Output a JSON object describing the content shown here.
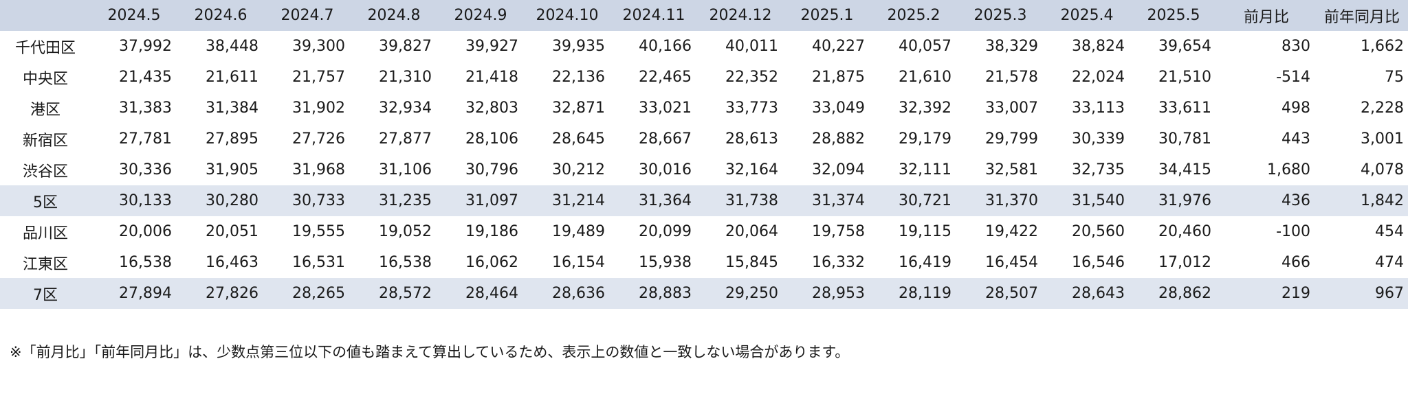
{
  "table": {
    "headers": [
      "",
      "2024.5",
      "2024.6",
      "2024.7",
      "2024.8",
      "2024.9",
      "2024.10",
      "2024.11",
      "2024.12",
      "2025.1",
      "2025.2",
      "2025.3",
      "2025.4",
      "2025.5",
      "前月比",
      "前年同月比"
    ],
    "rows": [
      {
        "label": "千代田区",
        "cells": [
          "37,992",
          "38,448",
          "39,300",
          "39,827",
          "39,927",
          "39,935",
          "40,166",
          "40,011",
          "40,227",
          "40,057",
          "38,329",
          "38,824",
          "39,654",
          "830",
          "1,662"
        ]
      },
      {
        "label": "中央区",
        "cells": [
          "21,435",
          "21,611",
          "21,757",
          "21,310",
          "21,418",
          "22,136",
          "22,465",
          "22,352",
          "21,875",
          "21,610",
          "21,578",
          "22,024",
          "21,510",
          "-514",
          "75"
        ]
      },
      {
        "label": "港区",
        "cells": [
          "31,383",
          "31,384",
          "31,902",
          "32,934",
          "32,803",
          "32,871",
          "33,021",
          "33,773",
          "33,049",
          "32,392",
          "33,007",
          "33,113",
          "33,611",
          "498",
          "2,228"
        ]
      },
      {
        "label": "新宿区",
        "cells": [
          "27,781",
          "27,895",
          "27,726",
          "27,877",
          "28,106",
          "28,645",
          "28,667",
          "28,613",
          "28,882",
          "29,179",
          "29,799",
          "30,339",
          "30,781",
          "443",
          "3,001"
        ]
      },
      {
        "label": "渋谷区",
        "cells": [
          "30,336",
          "31,905",
          "31,968",
          "31,106",
          "30,796",
          "30,212",
          "30,016",
          "32,164",
          "32,094",
          "32,111",
          "32,581",
          "32,735",
          "34,415",
          "1,680",
          "4,078"
        ]
      },
      {
        "label": "5区",
        "cells": [
          "30,133",
          "30,280",
          "30,733",
          "31,235",
          "31,097",
          "31,214",
          "31,364",
          "31,738",
          "31,374",
          "30,721",
          "31,370",
          "31,540",
          "31,976",
          "436",
          "1,842"
        ]
      },
      {
        "label": "品川区",
        "cells": [
          "20,006",
          "20,051",
          "19,555",
          "19,052",
          "19,186",
          "19,489",
          "20,099",
          "20,064",
          "19,758",
          "19,115",
          "19,422",
          "20,560",
          "20,460",
          "-100",
          "454"
        ]
      },
      {
        "label": "江東区",
        "cells": [
          "16,538",
          "16,463",
          "16,531",
          "16,538",
          "16,062",
          "16,154",
          "15,938",
          "15,845",
          "16,332",
          "16,419",
          "16,454",
          "16,546",
          "17,012",
          "466",
          "474"
        ]
      },
      {
        "label": "7区",
        "cells": [
          "27,894",
          "27,826",
          "28,265",
          "28,572",
          "28,464",
          "28,636",
          "28,883",
          "29,250",
          "28,953",
          "28,119",
          "28,507",
          "28,643",
          "28,862",
          "219",
          "967"
        ]
      }
    ]
  },
  "footnote": "※「前月比」「前年同月比」は、少数点第三位以下の値も踏まえて算出しているため、表示上の数値と一致しない場合があります。",
  "colors": {
    "header_bg": "#cdd6e5",
    "subtotal_bg": "#dfe5ef",
    "text": "#1a1a1a"
  }
}
